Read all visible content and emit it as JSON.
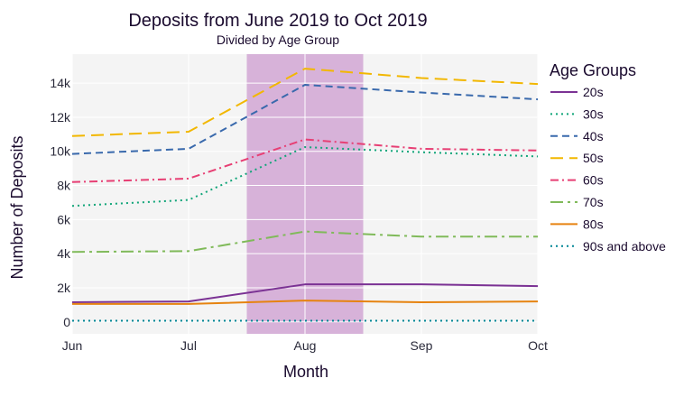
{
  "chart_data": {
    "type": "line",
    "title": "Deposits from June 2019 to Oct 2019",
    "subtitle": "Divided by Age Group",
    "xlabel": "Month",
    "ylabel": "Number of Deposits",
    "categories": [
      "Jun",
      "Jul",
      "Aug",
      "Sep",
      "Oct"
    ],
    "y_ticks": [
      0,
      2000,
      4000,
      6000,
      8000,
      10000,
      12000,
      14000
    ],
    "y_tick_labels": [
      "0",
      "2k",
      "4k",
      "6k",
      "8k",
      "10k",
      "12k",
      "14k"
    ],
    "ylim": [
      -700,
      15700
    ],
    "grid": true,
    "plot_background": "#f4f4f4",
    "highlight": {
      "from": "Jul",
      "to": "Aug",
      "from_offset": 0.5,
      "to_offset": 0.5,
      "color": "#d7b2d9"
    },
    "legend": {
      "title": "Age Groups",
      "position": "right"
    },
    "series": [
      {
        "name": "20s",
        "values": [
          1150,
          1200,
          2200,
          2200,
          2100
        ],
        "color": "#7b3294",
        "dash": "solid"
      },
      {
        "name": "30s",
        "values": [
          6800,
          7150,
          10250,
          9950,
          9700
        ],
        "color": "#11a579",
        "dash": "dot"
      },
      {
        "name": "40s",
        "values": [
          9850,
          10150,
          13900,
          13450,
          13050
        ],
        "color": "#3969ac",
        "dash": "dash"
      },
      {
        "name": "50s",
        "values": [
          10900,
          11150,
          14850,
          14300,
          13950
        ],
        "color": "#f2b701",
        "dash": "longdash"
      },
      {
        "name": "60s",
        "values": [
          8200,
          8400,
          10700,
          10150,
          10050
        ],
        "color": "#e73f74",
        "dash": "dashdot"
      },
      {
        "name": "70s",
        "values": [
          4100,
          4150,
          5300,
          5000,
          5000
        ],
        "color": "#80ba5a",
        "dash": "longdashdot"
      },
      {
        "name": "80s",
        "values": [
          1050,
          1050,
          1250,
          1150,
          1200
        ],
        "color": "#e68310",
        "dash": "solid"
      },
      {
        "name": "90s and above",
        "values": [
          70,
          70,
          70,
          70,
          70
        ],
        "color": "#008695",
        "dash": "dot"
      }
    ]
  }
}
